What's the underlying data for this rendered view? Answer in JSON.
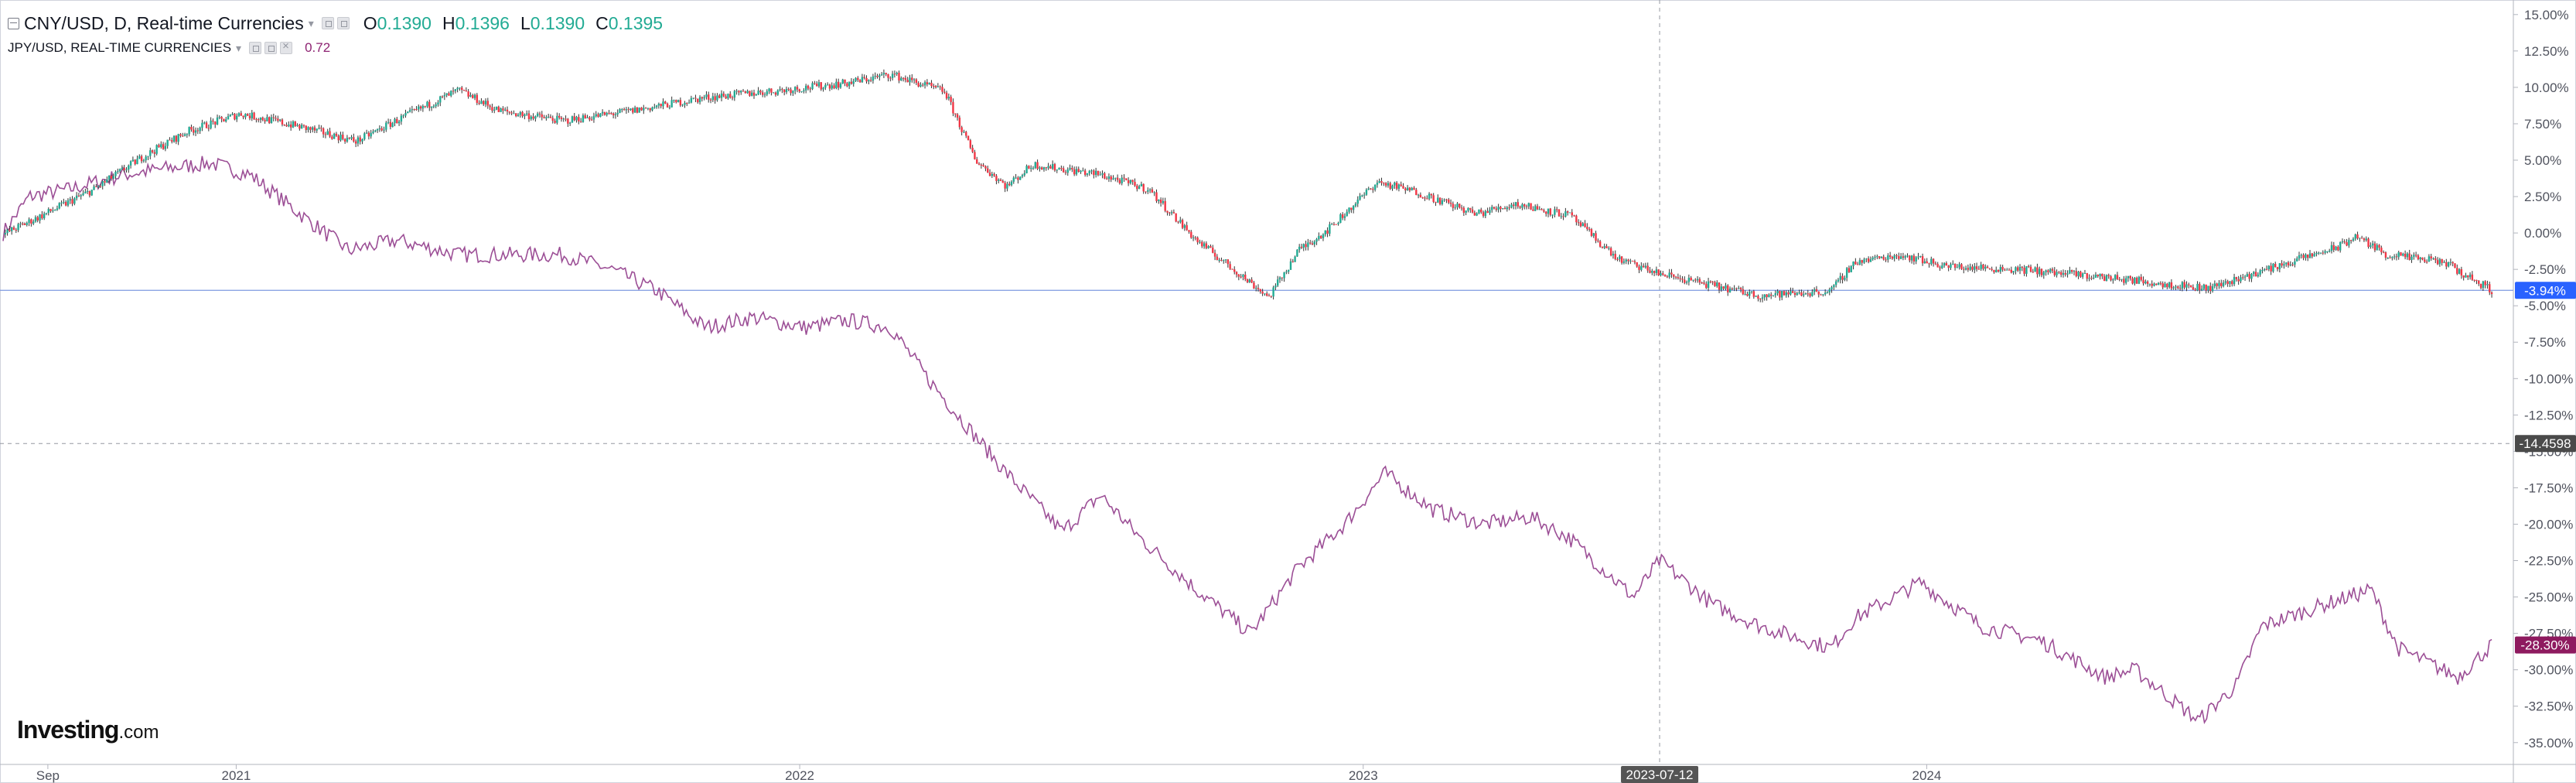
{
  "legend": {
    "main_title": "CNY/USD, D, Real-time Currencies",
    "open_label": "O",
    "open": "0.1390",
    "high_label": "H",
    "high": "0.1396",
    "low_label": "L",
    "low": "0.1390",
    "close_label": "C",
    "close": "0.1395",
    "compare_title": "JPY/USD, REAL-TIME CURRENCIES",
    "compare_value": "0.72"
  },
  "logo": {
    "name": "Investing",
    "suffix": ".com"
  },
  "colors": {
    "up": "#22ab94",
    "down": "#f23645",
    "compare": "#9c4f96",
    "compare_badge": "#8e1a5f",
    "current_badge": "#2962ff",
    "crosshair_badge": "#4a4a4a",
    "date_badge": "#555555"
  },
  "icons": [
    "collapse-icon",
    "chevron-down-icon",
    "settings-icon",
    "visibility-icon",
    "close-icon"
  ],
  "chart_data": {
    "type": "line",
    "series": [
      {
        "name": "CNY/USD",
        "style": "candlestick",
        "values_pct": [
          [
            "2020-08-03",
            -0.1
          ],
          [
            "2020-09-01",
            1.4
          ],
          [
            "2020-10-01",
            3.0
          ],
          [
            "2020-11-01",
            5.2
          ],
          [
            "2020-12-01",
            7.0
          ],
          [
            "2021-01-04",
            8.2
          ],
          [
            "2021-02-15",
            7.2
          ],
          [
            "2021-03-20",
            6.3
          ],
          [
            "2021-04-20",
            8.0
          ],
          [
            "2021-05-25",
            9.8
          ],
          [
            "2021-06-20",
            8.4
          ],
          [
            "2021-08-01",
            7.7
          ],
          [
            "2021-09-15",
            8.4
          ],
          [
            "2021-11-01",
            9.3
          ],
          [
            "2021-12-20",
            9.8
          ],
          [
            "2022-02-01",
            10.3
          ],
          [
            "2022-03-01",
            10.9
          ],
          [
            "2022-04-05",
            9.7
          ],
          [
            "2022-04-25",
            5.0
          ],
          [
            "2022-05-15",
            3.2
          ],
          [
            "2022-06-01",
            4.7
          ],
          [
            "2022-07-15",
            4.0
          ],
          [
            "2022-08-15",
            3.0
          ],
          [
            "2022-09-15",
            -0.5
          ],
          [
            "2022-10-15",
            -3.0
          ],
          [
            "2022-11-01",
            -4.4
          ],
          [
            "2022-11-20",
            -1.2
          ],
          [
            "2022-12-10",
            0.3
          ],
          [
            "2023-01-10",
            3.5
          ],
          [
            "2023-02-05",
            2.8
          ],
          [
            "2023-03-15",
            1.3
          ],
          [
            "2023-04-10",
            2.0
          ],
          [
            "2023-05-15",
            1.2
          ],
          [
            "2023-06-15",
            -1.8
          ],
          [
            "2023-07-12",
            -2.8
          ],
          [
            "2023-08-15",
            -3.6
          ],
          [
            "2023-09-15",
            -4.3
          ],
          [
            "2023-10-31",
            -4.0
          ],
          [
            "2023-11-15",
            -2.0
          ],
          [
            "2023-12-15",
            -1.5
          ],
          [
            "2024-01-15",
            -2.3
          ],
          [
            "2024-03-01",
            -2.5
          ],
          [
            "2024-05-01",
            -3.1
          ],
          [
            "2024-07-01",
            -3.8
          ],
          [
            "2024-07-25",
            -3.0
          ],
          [
            "2024-09-25",
            -0.9
          ],
          [
            "2024-10-05",
            -0.2
          ],
          [
            "2024-10-25",
            -1.5
          ],
          [
            "2024-12-01",
            -2.0
          ],
          [
            "2025-01-01",
            -3.94
          ]
        ]
      },
      {
        "name": "JPY/USD",
        "style": "line",
        "values_pct": [
          [
            "2020-08-03",
            0.0
          ],
          [
            "2020-08-20",
            2.5
          ],
          [
            "2020-09-15",
            3.0
          ],
          [
            "2020-10-20",
            4.0
          ],
          [
            "2020-11-15",
            4.4
          ],
          [
            "2020-12-15",
            4.8
          ],
          [
            "2021-01-10",
            4.0
          ],
          [
            "2021-02-15",
            1.0
          ],
          [
            "2021-03-15",
            -1.2
          ],
          [
            "2021-04-15",
            -0.5
          ],
          [
            "2021-05-25",
            -1.5
          ],
          [
            "2021-07-01",
            -1.5
          ],
          [
            "2021-08-01",
            -1.5
          ],
          [
            "2021-09-01",
            -2.5
          ],
          [
            "2021-10-01",
            -4.0
          ],
          [
            "2021-11-01",
            -6.5
          ],
          [
            "2021-12-01",
            -5.8
          ],
          [
            "2022-01-05",
            -6.5
          ],
          [
            "2022-02-01",
            -6.0
          ],
          [
            "2022-03-01",
            -6.5
          ],
          [
            "2022-03-25",
            -10.0
          ],
          [
            "2022-04-25",
            -14.0
          ],
          [
            "2022-05-15",
            -16.5
          ],
          [
            "2022-06-20",
            -20.5
          ],
          [
            "2022-07-15",
            -18.0
          ],
          [
            "2022-08-10",
            -21.0
          ],
          [
            "2022-09-15",
            -24.5
          ],
          [
            "2022-10-20",
            -27.5
          ],
          [
            "2022-11-20",
            -23.0
          ],
          [
            "2022-12-20",
            -20.0
          ],
          [
            "2023-01-15",
            -16.5
          ],
          [
            "2023-02-15",
            -19.0
          ],
          [
            "2023-03-20",
            -20.0
          ],
          [
            "2023-04-20",
            -19.5
          ],
          [
            "2023-05-15",
            -21.0
          ],
          [
            "2023-06-25",
            -25.0
          ],
          [
            "2023-07-12",
            -22.5
          ],
          [
            "2023-08-15",
            -25.5
          ],
          [
            "2023-09-15",
            -27.0
          ],
          [
            "2023-10-31",
            -28.5
          ],
          [
            "2023-11-15",
            -26.5
          ],
          [
            "2023-12-28",
            -24.0
          ],
          [
            "2024-02-05",
            -27.0
          ],
          [
            "2024-03-15",
            -28.0
          ],
          [
            "2024-04-25",
            -30.5
          ],
          [
            "2024-05-15",
            -30.0
          ],
          [
            "2024-06-25",
            -33.5
          ],
          [
            "2024-07-20",
            -31.0
          ],
          [
            "2024-08-05",
            -27.0
          ],
          [
            "2024-09-15",
            -25.5
          ],
          [
            "2024-10-15",
            -24.5
          ],
          [
            "2024-11-01",
            -28.5
          ],
          [
            "2024-12-10",
            -30.5
          ],
          [
            "2025-01-01",
            -28.3
          ]
        ]
      }
    ],
    "x_ticks": [
      "Sep",
      "2021",
      "2022",
      "2023",
      "2024"
    ],
    "x_tick_dates": [
      "2020-09-01",
      "2021-01-01",
      "2022-01-01",
      "2023-01-01",
      "2024-01-01"
    ],
    "y_ticks": [
      "15.00%",
      "12.50%",
      "10.00%",
      "7.50%",
      "5.00%",
      "2.50%",
      "0.00%",
      "-2.50%",
      "-5.00%",
      "-7.50%",
      "-10.00%",
      "-12.50%",
      "-15.00%",
      "-17.50%",
      "-20.00%",
      "-22.50%",
      "-25.00%",
      "-27.50%",
      "-30.00%",
      "-32.50%",
      "-35.00%"
    ],
    "y_tick_values": [
      15,
      12.5,
      10,
      7.5,
      5,
      2.5,
      0,
      -2.5,
      -5,
      -7.5,
      -10,
      -12.5,
      -15,
      -17.5,
      -20,
      -22.5,
      -25,
      -27.5,
      -30,
      -32.5,
      -35
    ],
    "ylim": [
      -36.5,
      16.0
    ],
    "xlim": [
      "2020-08-01",
      "2025-01-15"
    ],
    "grid": false,
    "price_labels": {
      "current": "-3.94%",
      "crosshair": "-14.4598",
      "compare": "-28.30%"
    },
    "price_label_values": {
      "current": -3.94,
      "crosshair": -14.46,
      "compare": -28.3
    },
    "crosshair_date": "2023-07-12"
  }
}
